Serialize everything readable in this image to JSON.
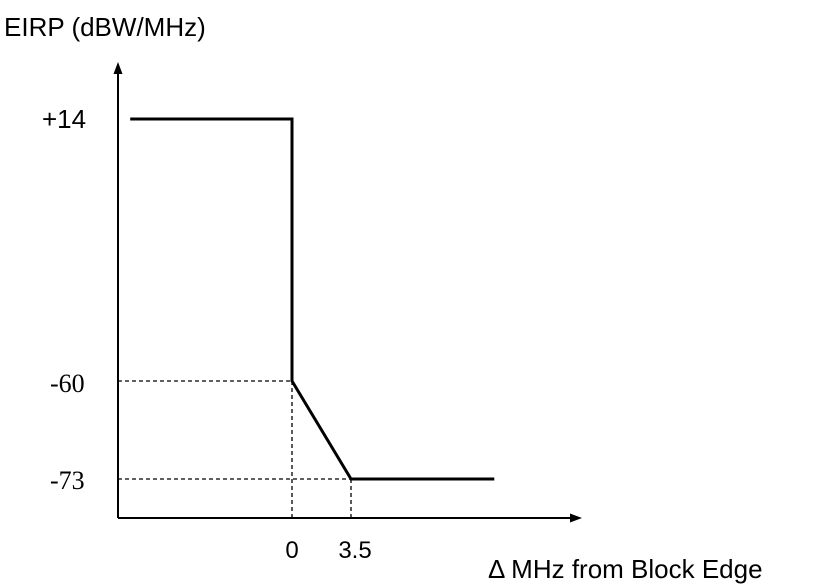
{
  "chart_data": {
    "type": "line",
    "title": "",
    "ylabel": "EIRP (dBW/MHz)",
    "xlabel": "Δ MHz from Block Edge",
    "x_ticks": [
      {
        "value": 0,
        "label": "0"
      },
      {
        "value": 3.5,
        "label": "3.5"
      }
    ],
    "y_ticks": [
      {
        "value": 14,
        "label": "+14"
      },
      {
        "value": -60,
        "label": "-60"
      },
      {
        "value": -73,
        "label": "-73"
      }
    ],
    "series": [
      {
        "name": "",
        "points": [
          {
            "x": -9.6,
            "y": 14
          },
          {
            "x": 0,
            "y": 14
          },
          {
            "x": 0,
            "y": -60
          },
          {
            "x": 3.5,
            "y": -73
          },
          {
            "x": 12.0,
            "y": -73
          }
        ]
      }
    ],
    "guides": [
      {
        "x": 0,
        "y": -60
      },
      {
        "x": 3.5,
        "y": -73
      }
    ],
    "grid": false,
    "legend": "none",
    "colors": {
      "line": "#000000",
      "background": "#ffffff"
    }
  }
}
